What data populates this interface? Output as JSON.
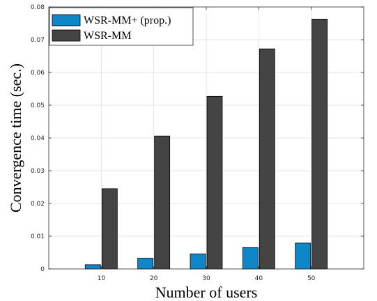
{
  "chart_data": {
    "type": "bar",
    "categories": [
      "10",
      "20",
      "30",
      "40",
      "50"
    ],
    "series": [
      {
        "name": "WSR-MM+ (prop.)",
        "color": "#0e86c8",
        "values": [
          0.0013,
          0.0033,
          0.0046,
          0.0065,
          0.0079
        ]
      },
      {
        "name": "WSR-MM",
        "color": "#444444",
        "values": [
          0.0245,
          0.0406,
          0.0527,
          0.0672,
          0.0763
        ]
      }
    ],
    "xlabel": "Number of users",
    "ylabel": "Convergence time (sec.)",
    "ylim": [
      0,
      0.08
    ],
    "yticks": [
      "0",
      "0.01",
      "0.02",
      "0.03",
      "0.04",
      "0.05",
      "0.06",
      "0.07",
      "0.08"
    ],
    "grid": true,
    "legend_position": "top-left"
  }
}
